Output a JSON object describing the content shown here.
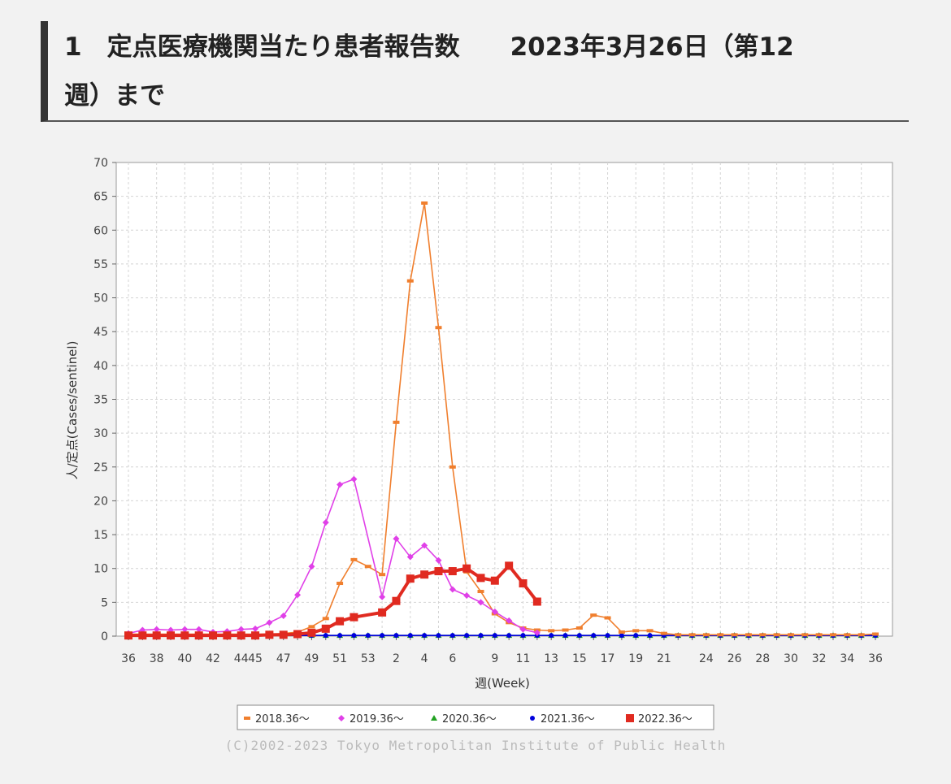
{
  "header": {
    "line1": "1　定点医療機関当たり患者報告数　　2023年3月26日（第12",
    "line2": "週）まで"
  },
  "copyright": "(C)2002-2023 Tokyo Metropolitan Institute of Public Health",
  "chart_data": {
    "type": "line",
    "xlabel": "週(Week)",
    "ylabel": "人/定点(Cases/sentinel)",
    "ylim": [
      0,
      70
    ],
    "yticks": [
      0,
      5,
      10,
      15,
      20,
      25,
      30,
      35,
      40,
      45,
      50,
      55,
      60,
      65,
      70
    ],
    "grid": true,
    "legend_position": "bottom",
    "weeks": [
      "36",
      "37",
      "38",
      "39",
      "40",
      "41",
      "42",
      "43",
      "44",
      "45",
      "46",
      "47",
      "48",
      "49",
      "50",
      "51",
      "52",
      "53",
      "1",
      "2",
      "3",
      "4",
      "5",
      "6",
      "7",
      "8",
      "9",
      "10",
      "11",
      "12",
      "13",
      "14",
      "15",
      "16",
      "17",
      "18",
      "19",
      "20",
      "21",
      "22",
      "23",
      "24",
      "25",
      "26",
      "27",
      "28",
      "29",
      "30",
      "31",
      "32",
      "33",
      "34",
      "35",
      "36"
    ],
    "xtick_labels": [
      "36",
      "38",
      "40",
      "42",
      "44",
      "45",
      "47",
      "49",
      "51",
      "53",
      "2",
      "4",
      "6",
      "9",
      "11",
      "13",
      "15",
      "17",
      "19",
      "21",
      "24",
      "26",
      "28",
      "30",
      "32",
      "34",
      "36"
    ],
    "series": [
      {
        "name": "2018.36～",
        "color": "#f07f2e",
        "marker": "dash",
        "values": [
          0.3,
          0.3,
          0.3,
          0.3,
          0.3,
          0.3,
          0.3,
          0.3,
          0.3,
          0.3,
          0.3,
          0.4,
          0.6,
          1.4,
          2.6,
          7.8,
          11.3,
          10.3,
          9.1,
          31.6,
          52.5,
          64.0,
          45.6,
          25.0,
          9.5,
          6.6,
          3.3,
          2.0,
          1.2,
          0.9,
          0.8,
          0.9,
          1.2,
          3.1,
          2.7,
          0.6,
          0.8,
          0.8,
          0.4,
          0.2,
          0.2,
          0.2,
          0.2,
          0.2,
          0.2,
          0.2,
          0.2,
          0.2,
          0.2,
          0.2,
          0.2,
          0.2,
          0.2,
          0.3
        ]
      },
      {
        "name": "2019.36～",
        "color": "#e040e8",
        "marker": "diamond",
        "values": [
          0.4,
          0.9,
          1.0,
          0.9,
          1.0,
          1.0,
          0.6,
          0.7,
          1.0,
          1.1,
          2.0,
          3.0,
          6.1,
          10.3,
          16.8,
          22.4,
          23.2,
          null,
          5.8,
          14.4,
          11.7,
          13.4,
          11.2,
          6.9,
          6.0,
          5.0,
          3.6,
          2.3,
          1.0,
          0.5,
          null,
          null,
          null,
          null,
          null,
          null,
          null,
          null,
          null,
          null,
          null,
          null,
          null,
          null,
          null,
          null,
          null,
          null,
          null,
          null,
          null,
          null,
          null,
          null
        ]
      },
      {
        "name": "2020.36～",
        "color": "#22a122",
        "marker": "triangle",
        "values": [
          0.1,
          0.1,
          0.1,
          0.1,
          0.1,
          0.1,
          0.1,
          0.1,
          0.1,
          0.1,
          0.1,
          0.1,
          0.1,
          0.1,
          0.1,
          0.1,
          0.1,
          0.1,
          0.1,
          0.1,
          0.1,
          0.1,
          0.1,
          0.1,
          0.1,
          0.1,
          0.1,
          0.1,
          0.1,
          0.1,
          0.1,
          0.1,
          0.1,
          0.1,
          0.1,
          0.1,
          0.1,
          0.1,
          0.1,
          0.1,
          0.1,
          0.1,
          0.1,
          0.1,
          0.1,
          0.1,
          0.1,
          0.1,
          0.1,
          0.1,
          0.1,
          0.1,
          0.1,
          0.1
        ]
      },
      {
        "name": "2021.36～",
        "color": "#0000dd",
        "marker": "circle",
        "values": [
          0.1,
          0.1,
          0.1,
          0.1,
          0.1,
          0.1,
          0.1,
          0.1,
          0.1,
          0.1,
          0.1,
          0.1,
          0.1,
          0.1,
          0.1,
          0.1,
          0.1,
          0.1,
          0.1,
          0.1,
          0.1,
          0.1,
          0.1,
          0.1,
          0.1,
          0.1,
          0.1,
          0.1,
          0.1,
          0.1,
          0.1,
          0.1,
          0.1,
          0.1,
          0.1,
          0.1,
          0.1,
          0.1,
          0.1,
          0.1,
          0.1,
          0.1,
          0.1,
          0.1,
          0.1,
          0.1,
          0.1,
          0.1,
          0.1,
          0.1,
          0.1,
          0.1,
          0.1,
          0.1
        ]
      },
      {
        "name": "2022.36～",
        "color": "#e02a20",
        "marker": "square",
        "values": [
          0.1,
          0.1,
          0.1,
          0.1,
          0.1,
          0.1,
          0.1,
          0.1,
          0.1,
          0.1,
          0.2,
          0.2,
          0.3,
          0.5,
          1.1,
          2.2,
          2.8,
          null,
          3.5,
          5.2,
          8.5,
          9.1,
          9.6,
          9.6,
          10.0,
          8.6,
          8.2,
          10.4,
          7.8,
          5.1,
          null,
          null,
          null,
          null,
          null,
          null,
          null,
          null,
          null,
          null,
          null,
          null,
          null,
          null,
          null,
          null,
          null,
          null,
          null,
          null,
          null,
          null,
          null,
          null
        ]
      }
    ]
  }
}
